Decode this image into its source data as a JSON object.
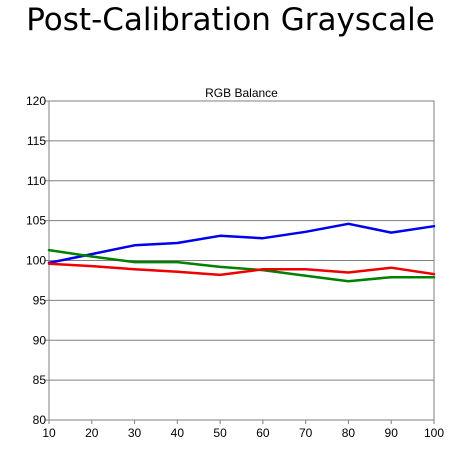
{
  "page": {
    "title": "Post-Calibration Grayscale"
  },
  "chart_data": {
    "type": "line",
    "title": "RGB Balance",
    "xlabel": "",
    "ylabel": "",
    "x": [
      10,
      20,
      30,
      40,
      50,
      60,
      70,
      80,
      90,
      100
    ],
    "xlim": [
      10,
      100
    ],
    "ylim": [
      80,
      120
    ],
    "xticks": [
      10,
      20,
      30,
      40,
      50,
      60,
      70,
      80,
      90,
      100
    ],
    "yticks": [
      80,
      85,
      90,
      95,
      100,
      105,
      110,
      115,
      120
    ],
    "grid": true,
    "legend": "none",
    "series": [
      {
        "color": "#0000ee",
        "values": [
          99.7,
          100.8,
          101.9,
          102.2,
          103.1,
          102.8,
          103.6,
          104.6,
          103.5,
          104.3
        ]
      },
      {
        "color": "#008000",
        "values": [
          101.3,
          100.5,
          99.8,
          99.8,
          99.2,
          98.8,
          98.1,
          97.4,
          97.9,
          97.9
        ]
      },
      {
        "color": "#ee0000",
        "values": [
          99.6,
          99.3,
          98.9,
          98.6,
          98.2,
          98.9,
          98.9,
          98.5,
          99.1,
          98.3
        ]
      }
    ]
  }
}
